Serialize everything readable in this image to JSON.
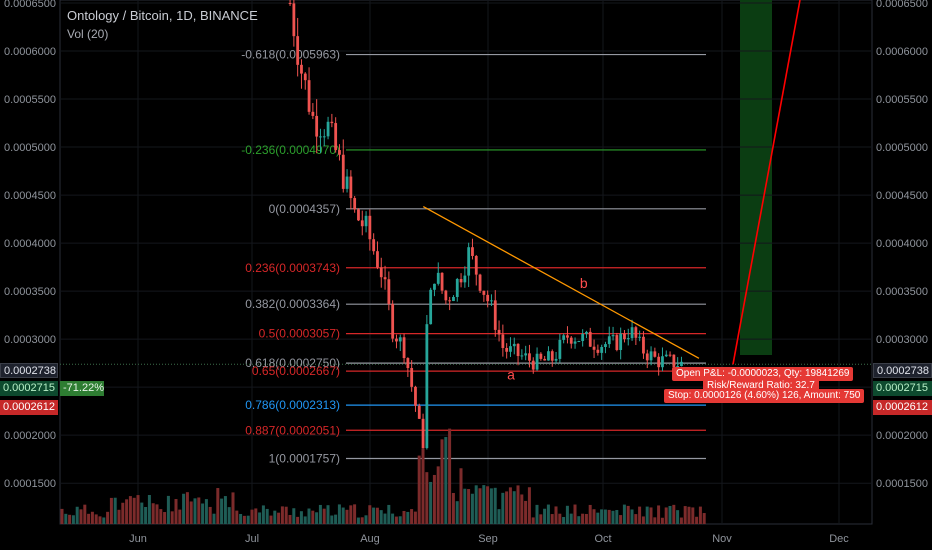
{
  "header": {
    "title": "Ontology / Bitcoin, 1D, BINANCE",
    "indicator": "Vol (20)"
  },
  "price_tags": {
    "left_current": "0.0002738",
    "left_mid": "0.0002715",
    "left_mid_pct": "-71.22%",
    "left_stop": "0.0002612",
    "right_current": "0.0002738",
    "right_mid": "0.0002715",
    "right_stop": "0.0002612"
  },
  "position_box": {
    "pnl": "Open P&L: -0.0000023, Qty: 19841269",
    "rr": "Risk/Reward Ratio: 32.7",
    "stop": "Stop: 0.0000126 (4.60%) 126, Amount: 750"
  },
  "colors": {
    "up": "#26a69a",
    "down": "#ef5350",
    "fib_neutral": "#9598a1",
    "fib_green": "#2ca02c",
    "fib_red": "#d62728",
    "fib_blue": "#2196f3",
    "trend": "#ff9800",
    "target": "#ff0000"
  },
  "chart_data": {
    "type": "candlestick",
    "symbol": "Ontology / Bitcoin",
    "interval": "1D",
    "exchange": "BINANCE",
    "ylim": [
      0.00012,
      0.00065
    ],
    "y_ticks": [
      "0.0006500",
      "0.0006000",
      "0.0005500",
      "0.0005000",
      "0.0004500",
      "0.0004000",
      "0.0003500",
      "0.0003000",
      "0.0002500",
      "0.0002000",
      "0.0001500"
    ],
    "x_ticks": [
      "Jun",
      "Jul",
      "Aug",
      "Sep",
      "Oct",
      "Nov",
      "Dec"
    ],
    "fib_levels": [
      {
        "ratio": "-0.618",
        "value": "0.0005963",
        "price": 0.0005963,
        "color": "neutral"
      },
      {
        "ratio": "-0.236",
        "value": "0.0004970",
        "price": 0.000497,
        "color": "green"
      },
      {
        "ratio": "0",
        "value": "0.0004357",
        "price": 0.0004357,
        "color": "neutral"
      },
      {
        "ratio": "0.236",
        "value": "0.0003743",
        "price": 0.0003743,
        "color": "red"
      },
      {
        "ratio": "0.382",
        "value": "0.0003364",
        "price": 0.0003364,
        "color": "neutral"
      },
      {
        "ratio": "0.5",
        "value": "0.0003057",
        "price": 0.0003057,
        "color": "red"
      },
      {
        "ratio": "0.618",
        "value": "0.0002750",
        "price": 0.000275,
        "color": "neutral"
      },
      {
        "ratio": "0.65",
        "value": "0.0002667",
        "price": 0.0002667,
        "color": "red"
      },
      {
        "ratio": "0.786",
        "value": "0.0002313",
        "price": 0.0002313,
        "color": "blue"
      },
      {
        "ratio": "0.887",
        "value": "0.0002051",
        "price": 0.0002051,
        "color": "red"
      },
      {
        "ratio": "1",
        "value": "0.0001757",
        "price": 0.0001757,
        "color": "neutral"
      }
    ],
    "annotations": [
      {
        "text": "a",
        "date_approx": "Sep 7",
        "price": 0.000258
      },
      {
        "text": "b",
        "date_approx": "Sep 26",
        "price": 0.000353
      }
    ],
    "trendline": {
      "start": {
        "date_approx": "Aug 15",
        "price": 0.000438
      },
      "end": {
        "date_approx": "Oct 26",
        "price": 0.00028
      }
    },
    "close_path": [
      [
        "Jul 11",
        0.00065
      ],
      [
        "Jul 14",
        0.00058
      ],
      [
        "Jul 17",
        0.00053
      ],
      [
        "Jul 21",
        0.00052
      ],
      [
        "Jul 25",
        0.00047
      ],
      [
        "Jul 28",
        0.00043
      ],
      [
        "Jul 31",
        0.000415
      ],
      [
        "Aug 4",
        0.00037
      ],
      [
        "Aug 7",
        0.00031
      ],
      [
        "Aug 10",
        0.00029
      ],
      [
        "Aug 13",
        0.00023
      ],
      [
        "Aug 15",
        0.00019
      ],
      [
        "Aug 16",
        0.00032
      ],
      [
        "Aug 18",
        0.00037
      ],
      [
        "Aug 21",
        0.00034
      ],
      [
        "Aug 24",
        0.00036
      ],
      [
        "Aug 27",
        0.00039
      ],
      [
        "Aug 30",
        0.00036
      ],
      [
        "Sep 2",
        0.00033
      ],
      [
        "Sep 5",
        0.00029
      ],
      [
        "Sep 8",
        0.000285
      ],
      [
        "Sep 11",
        0.00028
      ],
      [
        "Sep 14",
        0.000275
      ],
      [
        "Sep 18",
        0.00028
      ],
      [
        "Sep 22",
        0.000305
      ],
      [
        "Sep 26",
        0.0003
      ],
      [
        "Sep 30",
        0.000295
      ],
      [
        "Oct 4",
        0.000295
      ],
      [
        "Oct 8",
        0.00031
      ],
      [
        "Oct 11",
        0.00029
      ],
      [
        "Oct 15",
        0.000278
      ],
      [
        "Oct 19",
        0.000276
      ],
      [
        "Oct 22",
        0.0002738
      ]
    ]
  }
}
